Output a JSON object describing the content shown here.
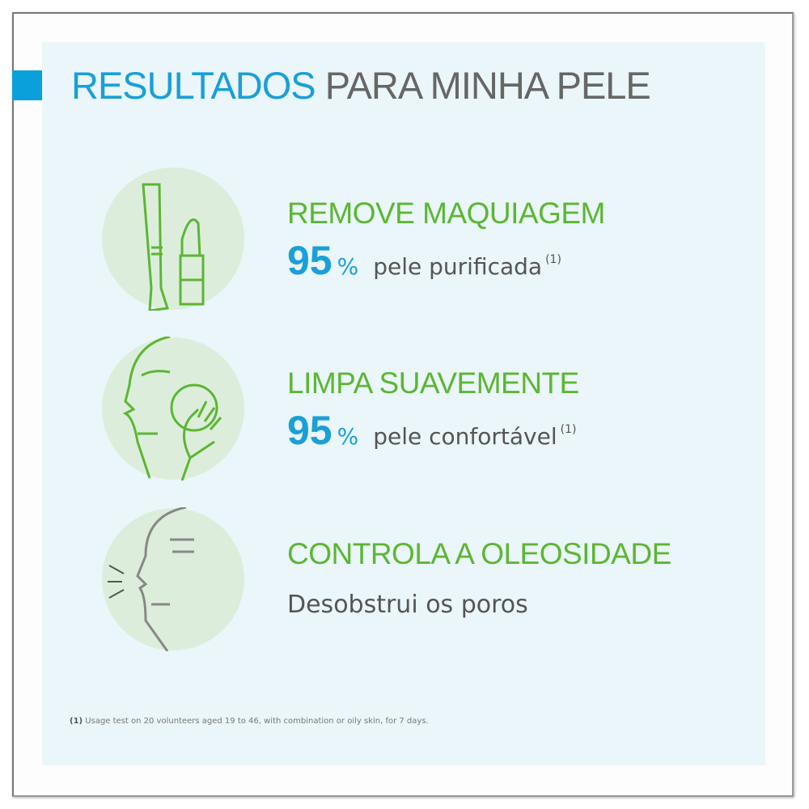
{
  "title": {
    "highlight": "RESULTADOS",
    "rest": "PARA MINHA PELE"
  },
  "colors": {
    "blue": "#1a9fd8",
    "green": "#5cb634",
    "panel": "#eaf6f9",
    "circle": "#dceedb"
  },
  "items": [
    {
      "icon": "makeup-icon",
      "heading": "REMOVE MAQUIAGEM",
      "value": "95",
      "unit": "%",
      "label": "pele purificada",
      "note": "(1)"
    },
    {
      "icon": "face-cleansing-icon",
      "heading": "LIMPA SUAVEMENTE",
      "value": "95",
      "unit": "%",
      "label": "pele confortável",
      "note": "(1)"
    },
    {
      "icon": "face-oil-control-icon",
      "heading": "CONTROLA A OLEOSIDADE",
      "text": "Desobstrui os poros"
    }
  ],
  "footnote": {
    "ref": "(1)",
    "text": "Usage test on 20 volunteers aged 19 to 46, with combination or oily skin, for 7 days."
  }
}
